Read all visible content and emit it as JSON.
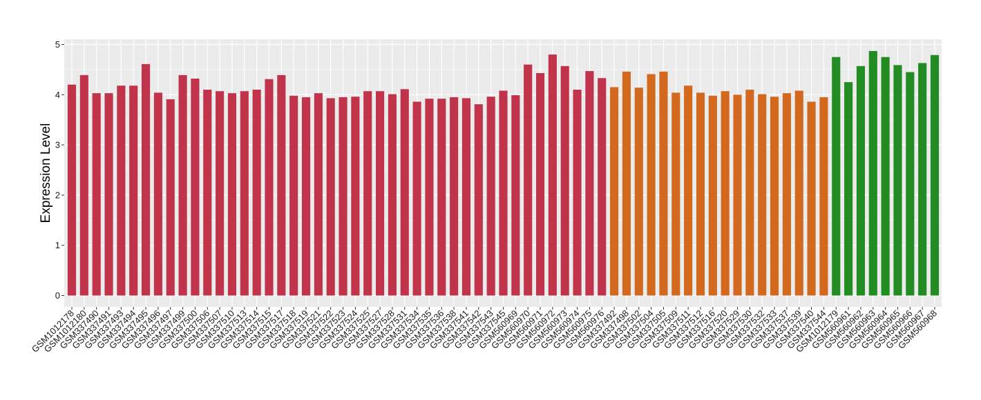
{
  "chart_data": {
    "type": "bar",
    "title": "",
    "xlabel": "",
    "ylabel": "Expression Level",
    "ylim": [
      0,
      5
    ],
    "yticks": [
      0,
      1,
      2,
      3,
      4,
      5
    ],
    "grid": true,
    "legend": "none",
    "panel_background": "#ebebeb",
    "categories": [
      "GSM1012178",
      "GSM1012180",
      "GSM337490",
      "GSM337491",
      "GSM337493",
      "GSM337494",
      "GSM337495",
      "GSM337496",
      "GSM337497",
      "GSM337499",
      "GSM337500",
      "GSM337506",
      "GSM337507",
      "GSM337510",
      "GSM337513",
      "GSM337514",
      "GSM337515",
      "GSM337517",
      "GSM337518",
      "GSM337519",
      "GSM337521",
      "GSM337522",
      "GSM337523",
      "GSM337524",
      "GSM337525",
      "GSM337527",
      "GSM337528",
      "GSM337531",
      "GSM337534",
      "GSM337535",
      "GSM337536",
      "GSM337538",
      "GSM337541",
      "GSM337542",
      "GSM337543",
      "GSM337545",
      "GSM560969",
      "GSM560970",
      "GSM560971",
      "GSM560972",
      "GSM560973",
      "GSM560974",
      "GSM560975",
      "GSM560976",
      "GSM337492",
      "GSM337498",
      "GSM337502",
      "GSM337504",
      "GSM337505",
      "GSM337509",
      "GSM337511",
      "GSM337512",
      "GSM337516",
      "GSM337520",
      "GSM337529",
      "GSM337530",
      "GSM337532",
      "GSM337533",
      "GSM337537",
      "GSM337539",
      "GSM337540",
      "GSM337544",
      "GSM1012179",
      "GSM560961",
      "GSM560962",
      "GSM560963",
      "GSM560964",
      "GSM560965",
      "GSM560966",
      "GSM560967",
      "GSM560968"
    ],
    "values": [
      4.2,
      4.39,
      4.03,
      4.03,
      4.18,
      4.18,
      4.61,
      4.04,
      3.91,
      4.39,
      4.32,
      4.1,
      4.07,
      4.03,
      4.07,
      4.1,
      4.31,
      4.39,
      3.98,
      3.95,
      4.03,
      3.93,
      3.95,
      3.96,
      4.07,
      4.07,
      4.01,
      4.11,
      3.86,
      3.92,
      3.92,
      3.95,
      3.93,
      3.81,
      3.96,
      4.08,
      3.99,
      4.6,
      4.43,
      4.8,
      4.57,
      4.1,
      4.47,
      4.33,
      4.15,
      4.46,
      4.14,
      4.41,
      4.46,
      4.04,
      4.18,
      4.04,
      3.98,
      4.07,
      4.0,
      4.1,
      4.01,
      3.96,
      4.03,
      4.08,
      3.86,
      3.95,
      4.75,
      4.25,
      4.57,
      4.87,
      4.75,
      4.59,
      4.45,
      4.63,
      4.79
    ],
    "bar_colors": {
      "red": "#c1334a",
      "orange": "#d2691e",
      "green": "#228b22"
    },
    "color_groups": [
      {
        "color": "red",
        "count": 44
      },
      {
        "color": "orange",
        "count": 18
      },
      {
        "color": "green",
        "count": 9
      }
    ]
  }
}
